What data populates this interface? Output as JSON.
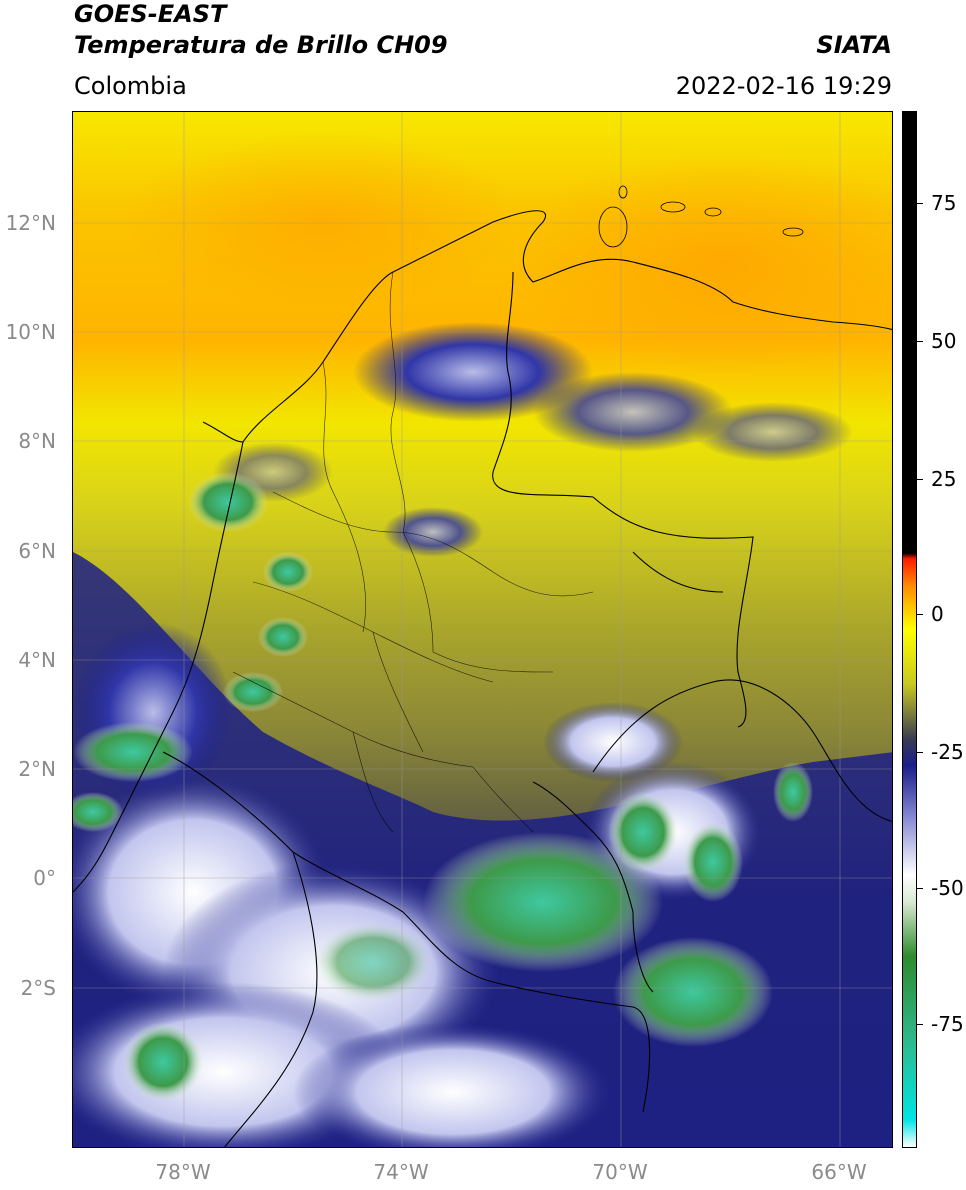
{
  "header": {
    "satellite": "GOES-EAST",
    "product": "Temperatura de Brillo CH09",
    "region": "Colombia",
    "agency": "SIATA",
    "datetime": "2022-02-16 19:29"
  },
  "axes": {
    "lat_labels": [
      "12°N",
      "10°N",
      "8°N",
      "6°N",
      "4°N",
      "2°N",
      "0°",
      "2°S"
    ],
    "lon_labels": [
      "78°W",
      "74°W",
      "70°W",
      "66°W"
    ]
  },
  "colorbar": {
    "ticks": [
      "75",
      "50",
      "25",
      "0",
      "-25",
      "-50",
      "-75"
    ],
    "stops": [
      {
        "value": -100,
        "color": "#ffffff"
      },
      {
        "value": -95,
        "color": "#00e5e5"
      },
      {
        "value": -80,
        "color": "#2eb88a"
      },
      {
        "value": -65,
        "color": "#2e8b2e"
      },
      {
        "value": -55,
        "color": "#d9ead3"
      },
      {
        "value": -50,
        "color": "#ffffff"
      },
      {
        "value": -40,
        "color": "#8c8fd6"
      },
      {
        "value": -30,
        "color": "#1a1f8c"
      },
      {
        "value": -25,
        "color": "#3a3d52"
      },
      {
        "value": -15,
        "color": "#c8c820"
      },
      {
        "value": -5,
        "color": "#ffff00"
      },
      {
        "value": 3,
        "color": "#ff8c00"
      },
      {
        "value": 8,
        "color": "#ff1a00"
      },
      {
        "value": 9,
        "color": "#000000"
      }
    ]
  },
  "colors": {
    "yellow": "#f5e600",
    "orange": "#ffb000",
    "olive": "#8a8a38",
    "navy": "#1c1f86",
    "lavender": "#b9bde8",
    "green": "#3d8c3d",
    "teal": "#3fbf96"
  }
}
